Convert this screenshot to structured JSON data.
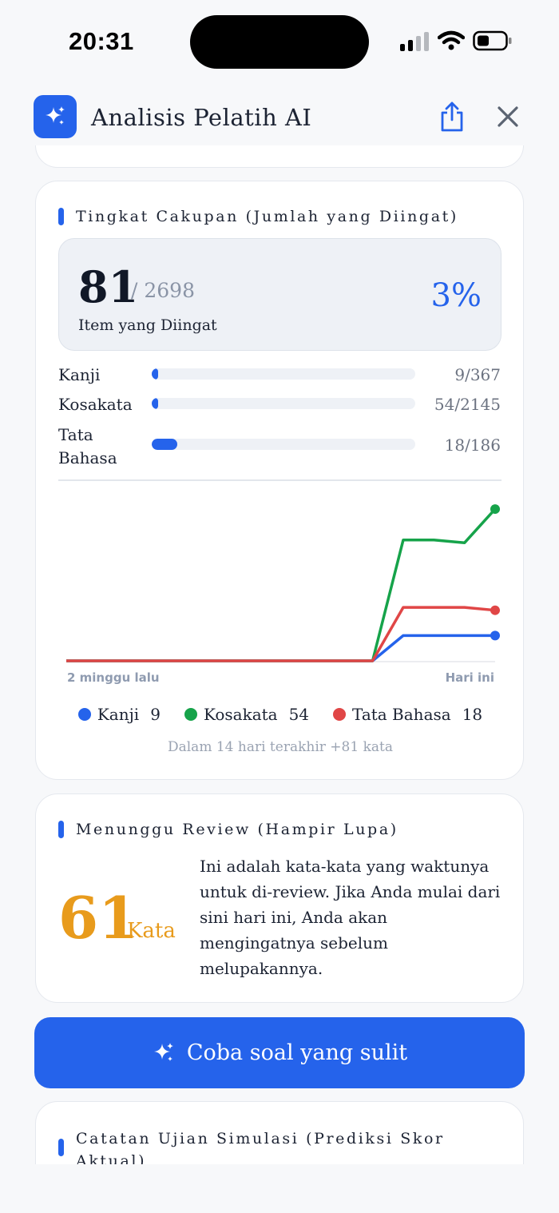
{
  "status_bar": {
    "time": "20:31"
  },
  "header": {
    "title": "Analisis Pelatih AI",
    "icon": "sparkles-icon"
  },
  "coverage": {
    "title": "Tingkat Cakupan (Jumlah yang Diingat)",
    "remembered": "81",
    "total": "/ 2698",
    "label": "Item yang Diingat",
    "percent": "3%",
    "rows": [
      {
        "label": "Kanji",
        "value": "9/367",
        "fraction": 0.0245
      },
      {
        "label": "Kosakata",
        "value": "54/2145",
        "fraction": 0.0252
      },
      {
        "label": "Tata Bahasa",
        "value": "18/186",
        "fraction": 0.0968
      }
    ],
    "axis_start": "2 minggu lalu",
    "axis_end": "Hari ini",
    "legend": [
      {
        "name": "Kanji",
        "value": "9",
        "color": "#2563eb"
      },
      {
        "name": "Kosakata",
        "value": "54",
        "color": "#16a34a"
      },
      {
        "name": "Tata Bahasa",
        "value": "18",
        "color": "#e04646"
      }
    ],
    "footnote": "Dalam 14 hari terakhir +81 kata"
  },
  "chart_data": {
    "type": "line",
    "x": [
      0,
      1,
      2,
      3,
      4,
      5,
      6,
      7,
      8,
      9,
      10,
      11,
      12,
      13,
      14
    ],
    "xlabel_start": "2 minggu lalu",
    "xlabel_end": "Hari ini",
    "ylim": [
      0,
      58
    ],
    "series": [
      {
        "name": "Kanji",
        "color": "#2563eb",
        "values": [
          0,
          0,
          0,
          0,
          0,
          0,
          0,
          0,
          0,
          0,
          0,
          9,
          9,
          9,
          9
        ]
      },
      {
        "name": "Kosakata",
        "color": "#16a34a",
        "values": [
          0,
          0,
          0,
          0,
          0,
          0,
          0,
          0,
          0,
          0,
          0,
          43,
          43,
          42,
          54
        ]
      },
      {
        "name": "Tata Bahasa",
        "color": "#e04646",
        "values": [
          0,
          0,
          0,
          0,
          0,
          0,
          0,
          0,
          0,
          0,
          0,
          19,
          19,
          19,
          18
        ]
      }
    ]
  },
  "review": {
    "title": "Menunggu Review (Hampir Lupa)",
    "count": "61",
    "unit": "Kata",
    "text": "Ini adalah kata-kata yang waktunya untuk di-review. Jika Anda mulai dari sini hari ini, Anda akan mengingatnya sebelum melupakannya."
  },
  "cta": {
    "label": "Coba soal yang sulit"
  },
  "exam_log": {
    "title": "Catatan Ujian Simulasi (Prediksi Skor Aktual)"
  }
}
